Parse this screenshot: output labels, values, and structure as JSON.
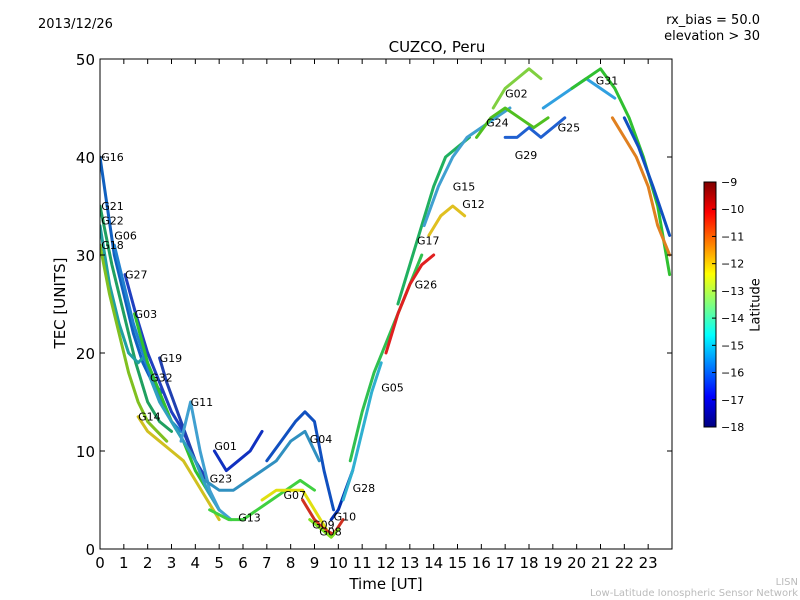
{
  "header": {
    "date": "2013/12/26",
    "rx_bias": "rx_bias = 50.0",
    "elevation": "elevation > 30"
  },
  "footer": {
    "credit_short": "LISN",
    "credit_long": "Low-Latitude Ionospheric Sensor Network"
  },
  "chart_data": {
    "type": "line",
    "title": "CUZCO, Peru",
    "xlabel": "Time [UT]",
    "ylabel": "TEC [UNITS]",
    "xlim": [
      0,
      24
    ],
    "ylim": [
      0,
      50
    ],
    "x_ticks": [
      "0",
      "1",
      "2",
      "3",
      "4",
      "5",
      "6",
      "7",
      "8",
      "9",
      "10",
      "11",
      "12",
      "13",
      "14",
      "15",
      "16",
      "17",
      "18",
      "19",
      "20",
      "21",
      "22",
      "23"
    ],
    "y_ticks": [
      "0",
      "10",
      "20",
      "30",
      "40",
      "50"
    ],
    "colorbar": {
      "label": "Latitude",
      "range": [
        -18,
        -9
      ],
      "ticks": [
        "−9",
        "−10",
        "−11",
        "−12",
        "−13",
        "−14",
        "−15",
        "−16",
        "−17",
        "−18"
      ],
      "colors": [
        "#00007f",
        "#0000ff",
        "#007fff",
        "#00ffff",
        "#7fff7f",
        "#ffff00",
        "#ff7f00",
        "#ff0000",
        "#7f0000"
      ]
    },
    "series": [
      {
        "name": "G16",
        "label": "G16",
        "lx": 0.05,
        "ly": 40,
        "x": [
          0,
          0.3,
          0.6,
          1.0,
          1.4,
          1.8,
          2.2,
          2.6
        ],
        "y": [
          40,
          35,
          30,
          26,
          22,
          19,
          17,
          16
        ],
        "color": "#1060c0"
      },
      {
        "name": "G21",
        "label": "G21",
        "lx": 0.05,
        "ly": 35,
        "x": [
          0,
          0.5,
          1.0,
          1.5,
          2.0,
          2.5,
          3.0
        ],
        "y": [
          35,
          29,
          24,
          19,
          15,
          13,
          12
        ],
        "color": "#20a060"
      },
      {
        "name": "G22",
        "label": "G22",
        "lx": 0.05,
        "ly": 33.5,
        "x": [
          0,
          0.4,
          0.8,
          1.2,
          1.6,
          2.0
        ],
        "y": [
          33,
          27,
          23,
          20,
          19,
          20
        ],
        "color": "#20a0a0"
      },
      {
        "name": "G06",
        "label": "G06",
        "lx": 0.6,
        "ly": 32,
        "x": [
          0.6,
          1.0,
          1.4,
          1.8,
          2.2,
          2.6,
          3.0,
          3.4
        ],
        "y": [
          31,
          27,
          23,
          20,
          17,
          15,
          13,
          12
        ],
        "color": "#2080d0"
      },
      {
        "name": "G18",
        "label": "G18",
        "lx": 0.05,
        "ly": 31,
        "x": [
          0,
          0.4,
          0.8,
          1.2,
          1.6,
          2.0,
          2.4,
          2.8
        ],
        "y": [
          31,
          26,
          22,
          18,
          15,
          13,
          12,
          11
        ],
        "color": "#80c020"
      },
      {
        "name": "G27",
        "label": "G27",
        "lx": 1.05,
        "ly": 28,
        "x": [
          1.05,
          1.5,
          2.0,
          2.5,
          3.0,
          3.5,
          4.0,
          4.5
        ],
        "y": [
          28,
          24,
          20,
          17,
          14,
          12,
          9,
          7
        ],
        "color": "#2040c0"
      },
      {
        "name": "G03",
        "label": "G03",
        "lx": 1.45,
        "ly": 24,
        "x": [
          1.45,
          2.0,
          2.5,
          3.0,
          3.5,
          4.0,
          4.5,
          5.0
        ],
        "y": [
          24,
          19,
          16,
          13,
          11,
          8,
          6,
          4
        ],
        "color": "#30c030"
      },
      {
        "name": "G19",
        "label": "G19",
        "lx": 2.5,
        "ly": 19.5,
        "x": [
          2.5,
          2.8,
          3.1,
          3.4,
          3.7,
          4.0,
          4.4
        ],
        "y": [
          19.5,
          17,
          15,
          13,
          11,
          9,
          7
        ],
        "color": "#2040b0"
      },
      {
        "name": "G32",
        "label": "G32",
        "lx": 2.1,
        "ly": 17.5,
        "x": [
          2.1,
          2.5,
          3.0,
          3.5,
          4.0,
          4.5,
          5.0
        ],
        "y": [
          17.5,
          15,
          13,
          11,
          9,
          6,
          4
        ],
        "color": "#30a0c0"
      },
      {
        "name": "G14",
        "label": "G14",
        "lx": 1.6,
        "ly": 13.5,
        "x": [
          1.6,
          2.0,
          2.5,
          3.0,
          3.5,
          4.0,
          4.5,
          5.0
        ],
        "y": [
          13.5,
          12,
          11,
          10,
          9,
          7,
          5,
          3
        ],
        "color": "#d0c020"
      },
      {
        "name": "G11",
        "label": "G11",
        "lx": 3.8,
        "ly": 15,
        "x": [
          3.4,
          3.8,
          4.2,
          4.6,
          5.0,
          5.5
        ],
        "y": [
          11,
          15,
          10,
          6,
          4,
          3
        ],
        "color": "#40a0d0"
      },
      {
        "name": "G01",
        "label": "G01",
        "lx": 4.8,
        "ly": 10.5,
        "x": [
          4.8,
          5.3,
          5.8,
          6.3,
          6.8
        ],
        "y": [
          10,
          8,
          9,
          10,
          12
        ],
        "color": "#1030c0"
      },
      {
        "name": "G23",
        "label": "G23",
        "lx": 4.6,
        "ly": 7.2,
        "x": [
          4.4,
          5.0,
          5.6,
          6.2,
          6.8,
          7.4,
          8.0,
          8.6,
          9.2
        ],
        "y": [
          7,
          6,
          6,
          7,
          8,
          9,
          11,
          12,
          9
        ],
        "color": "#3090c0"
      },
      {
        "name": "G13",
        "label": "G13",
        "lx": 5.8,
        "ly": 3.2,
        "x": [
          4.6,
          5.4,
          6.0,
          6.6,
          7.2,
          7.8,
          8.4,
          9.0
        ],
        "y": [
          4,
          3,
          3,
          4,
          5,
          6,
          7,
          6
        ],
        "color": "#40d040"
      },
      {
        "name": "G07",
        "label": "G07",
        "lx": 7.7,
        "ly": 5.5,
        "x": [
          6.8,
          7.4,
          8.0,
          8.5,
          9.0,
          9.5
        ],
        "y": [
          5,
          6,
          6,
          6,
          4,
          2
        ],
        "color": "#e0e010"
      },
      {
        "name": "G04",
        "label": "G04",
        "lx": 8.8,
        "ly": 11.2,
        "x": [
          7.0,
          7.6,
          8.2,
          8.6,
          9.0,
          9.4,
          9.8
        ],
        "y": [
          9,
          11,
          13,
          14,
          13,
          8,
          4
        ],
        "color": "#1050c0"
      },
      {
        "name": "G09",
        "label": "G09",
        "lx": 8.9,
        "ly": 2.5,
        "x": [
          8.5,
          9.0,
          9.4,
          9.8,
          10.2
        ],
        "y": [
          5,
          3,
          2,
          1.5,
          3
        ],
        "color": "#d03020"
      },
      {
        "name": "G08",
        "label": "G08",
        "lx": 9.2,
        "ly": 1.8,
        "x": [
          8.8,
          9.3,
          9.7,
          10.0
        ],
        "y": [
          3,
          2,
          1.2,
          2
        ],
        "color": "#80e020"
      },
      {
        "name": "G10",
        "label": "G10",
        "lx": 9.8,
        "ly": 3.3,
        "x": [
          9.7,
          10.0,
          10.3,
          10.6
        ],
        "y": [
          3,
          4,
          6,
          8
        ],
        "color": "#0030b0"
      },
      {
        "name": "G28",
        "label": "G28",
        "lx": 10.6,
        "ly": 6.2,
        "x": [
          10.2,
          10.6,
          11.0,
          11.4,
          11.8
        ],
        "y": [
          5,
          8,
          12,
          16,
          19
        ],
        "color": "#30b0d0"
      },
      {
        "name": "G05",
        "label": "G05",
        "lx": 11.8,
        "ly": 16.5,
        "x": [
          10.5,
          11.0,
          11.5,
          12.0,
          12.5,
          13.0,
          13.5
        ],
        "y": [
          9,
          14,
          18,
          21,
          24,
          27,
          30
        ],
        "color": "#30c050"
      },
      {
        "name": "G26",
        "label": "G26",
        "lx": 13.2,
        "ly": 27,
        "x": [
          12.0,
          12.5,
          13.0,
          13.5,
          14.0
        ],
        "y": [
          20,
          24,
          27,
          29,
          30
        ],
        "color": "#e02020"
      },
      {
        "name": "G17",
        "label": "G17",
        "lx": 13.3,
        "ly": 31.5,
        "x": [
          12.5,
          13.0,
          13.5,
          14.0,
          14.5,
          15.0,
          15.5
        ],
        "y": [
          25,
          29,
          33,
          37,
          40,
          41,
          42
        ],
        "color": "#20b060"
      },
      {
        "name": "G15",
        "label": "G15",
        "lx": 14.8,
        "ly": 37,
        "x": [
          13.6,
          14.2,
          14.8,
          15.4,
          16.0,
          16.6,
          17.2
        ],
        "y": [
          33,
          37,
          40,
          42,
          43,
          44,
          45
        ],
        "color": "#40a0d0"
      },
      {
        "name": "G12",
        "label": "G12",
        "lx": 15.2,
        "ly": 35.2,
        "x": [
          13.8,
          14.3,
          14.8,
          15.3
        ],
        "y": [
          32,
          34,
          35,
          34
        ],
        "color": "#e0c020"
      },
      {
        "name": "G24",
        "label": "G24",
        "lx": 16.2,
        "ly": 43.5,
        "x": [
          15.8,
          16.4,
          17.0,
          17.6,
          18.2,
          18.8
        ],
        "y": [
          42,
          44,
          45,
          44,
          43,
          44
        ],
        "color": "#50c020"
      },
      {
        "name": "G02",
        "label": "G02",
        "lx": 17.0,
        "ly": 46.5,
        "x": [
          16.5,
          17.0,
          17.5,
          18.0,
          18.5
        ],
        "y": [
          45,
          47,
          48,
          49,
          48
        ],
        "color": "#80d040"
      },
      {
        "name": "G29",
        "label": "G29",
        "lx": 17.4,
        "ly": 40.2,
        "x": [
          17.0,
          17.5,
          18.0,
          18.5,
          19.0,
          19.5
        ],
        "y": [
          42,
          42,
          43,
          42,
          43,
          44
        ],
        "color": "#2060d0"
      },
      {
        "name": "G25",
        "label": "G25",
        "lx": 19.2,
        "ly": 43,
        "x": [
          18.6,
          19.2,
          19.8,
          20.4,
          21.0,
          21.6
        ],
        "y": [
          45,
          46,
          47,
          48,
          47,
          46
        ],
        "color": "#30a0e0"
      },
      {
        "name": "G31",
        "label": "G31",
        "lx": 20.8,
        "ly": 47.8,
        "x": [
          19.8,
          20.4,
          21.0,
          21.6,
          22.2,
          22.8,
          23.4,
          23.9
        ],
        "y": [
          47,
          48,
          49,
          47,
          44,
          40,
          35,
          28
        ],
        "color": "#30c030"
      },
      {
        "name": "",
        "label": "",
        "lx": 0,
        "ly": 0,
        "x": [
          21.5,
          22.0,
          22.5,
          23.0,
          23.4,
          23.9
        ],
        "y": [
          44,
          42,
          40,
          37,
          33,
          30
        ],
        "color": "#e08020"
      },
      {
        "name": "",
        "label": "",
        "lx": 0,
        "ly": 0,
        "x": [
          22.0,
          22.6,
          23.2,
          23.9
        ],
        "y": [
          44,
          41,
          37,
          32
        ],
        "color": "#1050c0"
      }
    ]
  }
}
